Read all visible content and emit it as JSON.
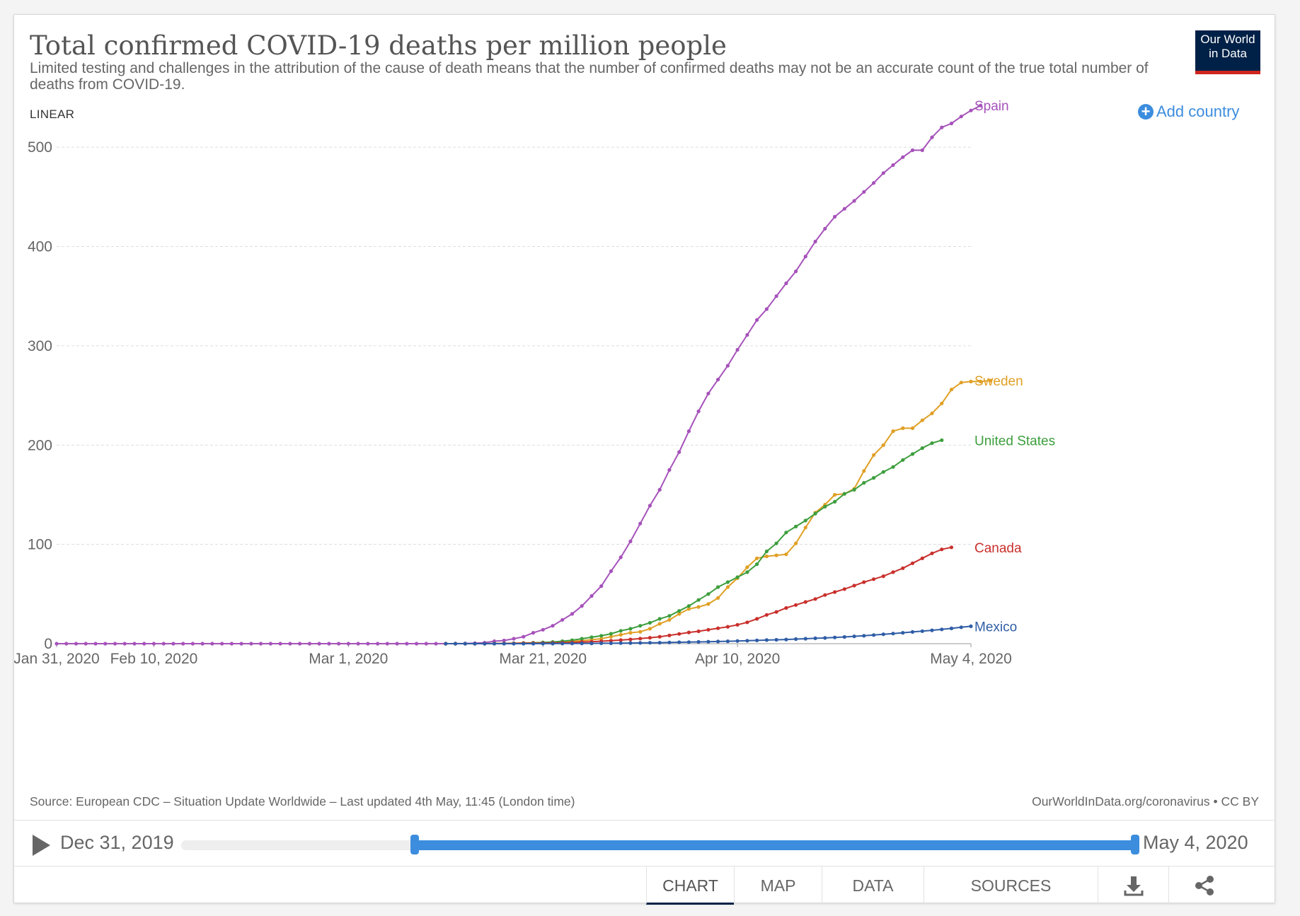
{
  "header": {
    "title": "Total confirmed COVID-19 deaths per million people",
    "subtitle": "Limited testing and challenges in the attribution of the cause of death means that the number of confirmed deaths may not be an accurate count of the true total number of deaths from COVID-19.",
    "logo_line1": "Our World",
    "logo_line2": "in Data"
  },
  "controls": {
    "scale": "LINEAR",
    "add_country": "Add country"
  },
  "footer": {
    "source": "Source: European CDC – Situation Update Worldwide – Last updated 4th May, 11:45 (London time)",
    "credit": "OurWorldInData.org/coronavirus • CC BY"
  },
  "timeline": {
    "start_label": "Dec 31, 2019",
    "end_label": "May 4, 2020",
    "range_start_fraction": 0.245,
    "range_end_fraction": 1.0
  },
  "tabs": [
    {
      "label": "CHART",
      "active": true
    },
    {
      "label": "MAP",
      "active": false
    },
    {
      "label": "DATA",
      "active": false
    },
    {
      "label": "SOURCES",
      "active": false
    }
  ],
  "icons": {
    "download": "download-icon",
    "share": "share-icon",
    "play": "play-icon",
    "add": "plus-circle-icon"
  },
  "chart_data": {
    "type": "line",
    "title": "Total confirmed COVID-19 deaths per million people",
    "x_start": "Jan 31, 2020",
    "x_end": "May 4, 2020",
    "x_ticks": [
      "Jan 31, 2020",
      "Feb 10, 2020",
      "Mar 1, 2020",
      "Mar 21, 2020",
      "Apr 10, 2020",
      "May 4, 2020"
    ],
    "y_ticks": [
      0,
      100,
      200,
      300,
      400,
      500
    ],
    "ylim": [
      0,
      550
    ],
    "grid": "horizontal dashed",
    "legend": "end-of-line labels",
    "series": [
      {
        "name": "Spain",
        "color": "#a652ba",
        "start": "Jan 31, 2020",
        "values": [
          0,
          0,
          0,
          0,
          0,
          0,
          0,
          0,
          0,
          0,
          0,
          0,
          0,
          0,
          0,
          0,
          0,
          0,
          0,
          0,
          0,
          0,
          0,
          0,
          0,
          0,
          0,
          0,
          0,
          0,
          0,
          0,
          0,
          0,
          0,
          0,
          0,
          0,
          0,
          0,
          0,
          0.1,
          0.2,
          0.5,
          1,
          2.5,
          3.2,
          5,
          7,
          11,
          14,
          18,
          24,
          30,
          38,
          48,
          58,
          73,
          87,
          103,
          121,
          139,
          155,
          175,
          193,
          214,
          234,
          252,
          266,
          280,
          296,
          311,
          326,
          337,
          350,
          363,
          375,
          390,
          405,
          418,
          430,
          438,
          446,
          455,
          464,
          474,
          482,
          490,
          497,
          497,
          510,
          520,
          524,
          531,
          537,
          542
        ]
      },
      {
        "name": "Sweden",
        "color": "#e0a025",
        "start": "Mar 11, 2020",
        "values": [
          0,
          0,
          0,
          0,
          0,
          0.1,
          0.3,
          0.5,
          0.8,
          1,
          1.3,
          1.6,
          2,
          2.5,
          3,
          4,
          5,
          7,
          9,
          11,
          12,
          15,
          20,
          24,
          30,
          35,
          37,
          40,
          46,
          57,
          66,
          77,
          86,
          88,
          89,
          90,
          101,
          117,
          132,
          140,
          150,
          151,
          156,
          174,
          190,
          200,
          214,
          217,
          217,
          225,
          232,
          242,
          256,
          263,
          264,
          264,
          265
        ]
      },
      {
        "name": "United States",
        "color": "#3d9e3d",
        "start": "Mar 11, 2020",
        "values": [
          0,
          0,
          0,
          0,
          0,
          0.1,
          0.2,
          0.3,
          0.5,
          0.8,
          1.2,
          1.7,
          2.5,
          3.5,
          5,
          6.5,
          8,
          10,
          13,
          15,
          18,
          21,
          25,
          28,
          33,
          38,
          44,
          50,
          57,
          62,
          67,
          72,
          80,
          93,
          101,
          112,
          118,
          124,
          131,
          138,
          143,
          151,
          155,
          162,
          167,
          173,
          178,
          185,
          191,
          197,
          202,
          205
        ]
      },
      {
        "name": "Canada",
        "color": "#c9302c",
        "start": "Mar 11, 2020",
        "values": [
          0,
          0,
          0,
          0,
          0,
          0.1,
          0.2,
          0.3,
          0.4,
          0.5,
          0.6,
          0.8,
          1,
          1.3,
          1.7,
          2,
          2.5,
          3,
          3.6,
          4.3,
          5.1,
          6,
          7,
          8.3,
          9.8,
          11.3,
          12.5,
          14,
          15.5,
          17,
          19,
          21.5,
          25,
          29,
          32,
          36,
          39,
          42,
          45,
          49,
          52,
          55,
          58.5,
          62,
          65,
          68,
          72,
          76,
          81,
          86,
          91,
          95,
          97
        ]
      },
      {
        "name": "Mexico",
        "color": "#2f5da6",
        "start": "Mar 11, 2020",
        "values": [
          0,
          0,
          0,
          0,
          0,
          0,
          0,
          0,
          0,
          0,
          0.1,
          0.1,
          0.15,
          0.2,
          0.25,
          0.3,
          0.4,
          0.45,
          0.55,
          0.65,
          0.75,
          0.9,
          1,
          1.2,
          1.4,
          1.6,
          1.8,
          2,
          2.2,
          2.4,
          2.7,
          3,
          3.3,
          3.6,
          3.9,
          4.2,
          4.6,
          5,
          5.4,
          5.8,
          6.3,
          6.8,
          7.4,
          8,
          8.7,
          9.5,
          10.2,
          11,
          11.8,
          12.6,
          13.5,
          14.4,
          15.4,
          16.5,
          17.5
        ]
      }
    ]
  }
}
